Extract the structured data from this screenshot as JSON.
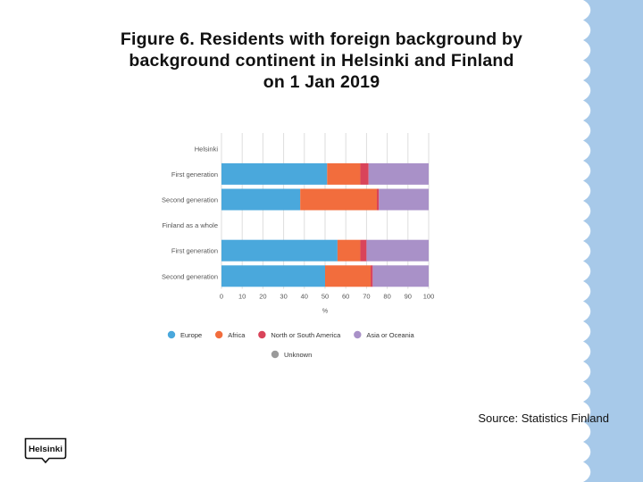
{
  "slide": {
    "title_lines": [
      "Figure 6. Residents with foreign background by",
      "background continent  in Helsinki and Finland",
      "on 1 Jan 2019"
    ],
    "source": "Source: Statistics Finland",
    "logo_text": "Helsinki",
    "ribbon_color": "#a7c9e9"
  },
  "chart_data": {
    "type": "bar",
    "orientation": "horizontal",
    "stacked": true,
    "categories": [
      "Helsinki",
      "First generation",
      "Second generation",
      "Finland as a whole",
      "First generation",
      "Second generation"
    ],
    "group_headers": [
      0,
      3
    ],
    "series": [
      {
        "name": "Europe",
        "color": "#4aa8dc",
        "values": [
          null,
          51,
          38,
          null,
          56,
          50
        ]
      },
      {
        "name": "Africa",
        "color": "#f26d3d",
        "values": [
          null,
          16,
          37,
          null,
          11,
          22
        ]
      },
      {
        "name": "North or South America",
        "color": "#d9445a",
        "values": [
          null,
          4,
          1,
          null,
          3,
          1
        ]
      },
      {
        "name": "Asia or Oceania",
        "color": "#a991c8",
        "values": [
          null,
          29,
          24,
          null,
          30,
          27
        ]
      },
      {
        "name": "Unknown",
        "color": "#9a9a9a",
        "values": [
          null,
          0,
          0,
          null,
          0,
          0
        ]
      }
    ],
    "x_ticks": [
      0,
      10,
      20,
      30,
      40,
      50,
      60,
      70,
      80,
      90,
      100
    ],
    "xlabel": "%",
    "ylabel": "",
    "xlim": [
      0,
      100
    ],
    "grid": "vertical",
    "legend_position": "bottom",
    "legend_rows": [
      [
        "Europe",
        "Africa",
        "North or South America",
        "Asia or Oceania"
      ],
      [
        "Unknown"
      ]
    ]
  }
}
